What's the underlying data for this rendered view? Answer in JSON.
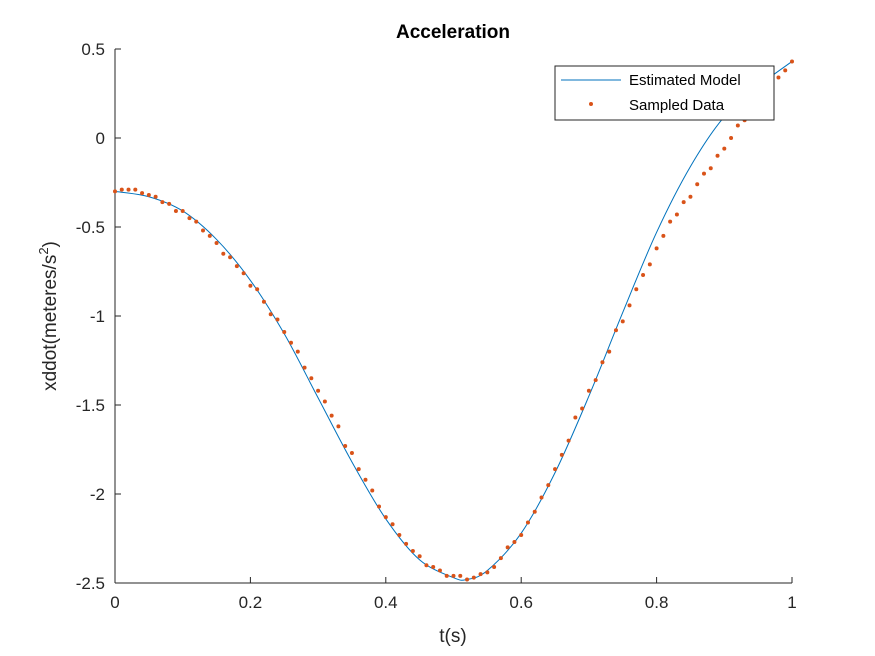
{
  "chart_data": {
    "type": "line",
    "title": "Acceleration",
    "xlabel": "t(s)",
    "ylabel_main": "xddot(meteres/s",
    "ylabel_sup": "2",
    "ylabel_close": ")",
    "xlim": [
      0,
      1
    ],
    "ylim": [
      -2.5,
      0.5
    ],
    "xticks": [
      0,
      0.2,
      0.4,
      0.6,
      0.8,
      1
    ],
    "xtick_labels": [
      "0",
      "0.2",
      "0.4",
      "0.6",
      "0.8",
      "1"
    ],
    "yticks": [
      -2.5,
      -2,
      -1.5,
      -1,
      -0.5,
      0,
      0.5
    ],
    "ytick_labels": [
      "-2.5",
      "-2",
      "-1.5",
      "-1",
      "-0.5",
      "0",
      "0.5"
    ],
    "grid": false,
    "legend_position": "top-right",
    "series": [
      {
        "name": "Estimated Model",
        "style": "line",
        "color": "#0072BD",
        "x": [
          0,
          0.05,
          0.1,
          0.15,
          0.2,
          0.25,
          0.3,
          0.35,
          0.4,
          0.45,
          0.5,
          0.52,
          0.55,
          0.6,
          0.65,
          0.7,
          0.75,
          0.8,
          0.85,
          0.9,
          0.95,
          1.0
        ],
        "y": [
          -0.3,
          -0.33,
          -0.41,
          -0.57,
          -0.8,
          -1.1,
          -1.46,
          -1.82,
          -2.14,
          -2.37,
          -2.47,
          -2.48,
          -2.43,
          -2.22,
          -1.88,
          -1.45,
          -0.98,
          -0.53,
          -0.16,
          0.12,
          0.29,
          0.43
        ]
      },
      {
        "name": "Sampled Data",
        "style": "dots",
        "color": "#D95319",
        "x": [
          0.0,
          0.01,
          0.02,
          0.03,
          0.04,
          0.05,
          0.06,
          0.07,
          0.08,
          0.09,
          0.1,
          0.11,
          0.12,
          0.13,
          0.14,
          0.15,
          0.16,
          0.17,
          0.18,
          0.19,
          0.2,
          0.21,
          0.22,
          0.23,
          0.24,
          0.25,
          0.26,
          0.27,
          0.28,
          0.29,
          0.3,
          0.31,
          0.32,
          0.33,
          0.34,
          0.35,
          0.36,
          0.37,
          0.38,
          0.39,
          0.4,
          0.41,
          0.42,
          0.43,
          0.44,
          0.45,
          0.46,
          0.47,
          0.48,
          0.49,
          0.5,
          0.51,
          0.52,
          0.53,
          0.54,
          0.55,
          0.56,
          0.57,
          0.58,
          0.59,
          0.6,
          0.61,
          0.62,
          0.63,
          0.64,
          0.65,
          0.66,
          0.67,
          0.68,
          0.69,
          0.7,
          0.71,
          0.72,
          0.73,
          0.74,
          0.75,
          0.76,
          0.77,
          0.78,
          0.79,
          0.8,
          0.81,
          0.82,
          0.83,
          0.84,
          0.85,
          0.86,
          0.87,
          0.88,
          0.89,
          0.9,
          0.91,
          0.92,
          0.93,
          0.94,
          0.95,
          0.96,
          0.97,
          0.98,
          0.99,
          1.0
        ],
        "y": [
          -0.3,
          -0.29,
          -0.29,
          -0.29,
          -0.31,
          -0.32,
          -0.33,
          -0.36,
          -0.37,
          -0.41,
          -0.41,
          -0.45,
          -0.47,
          -0.52,
          -0.55,
          -0.59,
          -0.65,
          -0.67,
          -0.72,
          -0.76,
          -0.83,
          -0.85,
          -0.92,
          -0.99,
          -1.02,
          -1.09,
          -1.15,
          -1.2,
          -1.29,
          -1.35,
          -1.42,
          -1.48,
          -1.56,
          -1.62,
          -1.73,
          -1.77,
          -1.86,
          -1.92,
          -1.98,
          -2.07,
          -2.13,
          -2.17,
          -2.23,
          -2.28,
          -2.32,
          -2.35,
          -2.4,
          -2.41,
          -2.43,
          -2.46,
          -2.46,
          -2.46,
          -2.48,
          -2.47,
          -2.45,
          -2.44,
          -2.41,
          -2.36,
          -2.3,
          -2.27,
          -2.23,
          -2.16,
          -2.1,
          -2.02,
          -1.95,
          -1.86,
          -1.78,
          -1.7,
          -1.57,
          -1.52,
          -1.42,
          -1.36,
          -1.26,
          -1.2,
          -1.08,
          -1.03,
          -0.94,
          -0.85,
          -0.77,
          -0.71,
          -0.62,
          -0.55,
          -0.47,
          -0.43,
          -0.36,
          -0.33,
          -0.26,
          -0.2,
          -0.17,
          -0.1,
          -0.06,
          0.0,
          0.07,
          0.1,
          0.15,
          0.19,
          0.25,
          0.29,
          0.34,
          0.38,
          0.43
        ]
      }
    ]
  }
}
